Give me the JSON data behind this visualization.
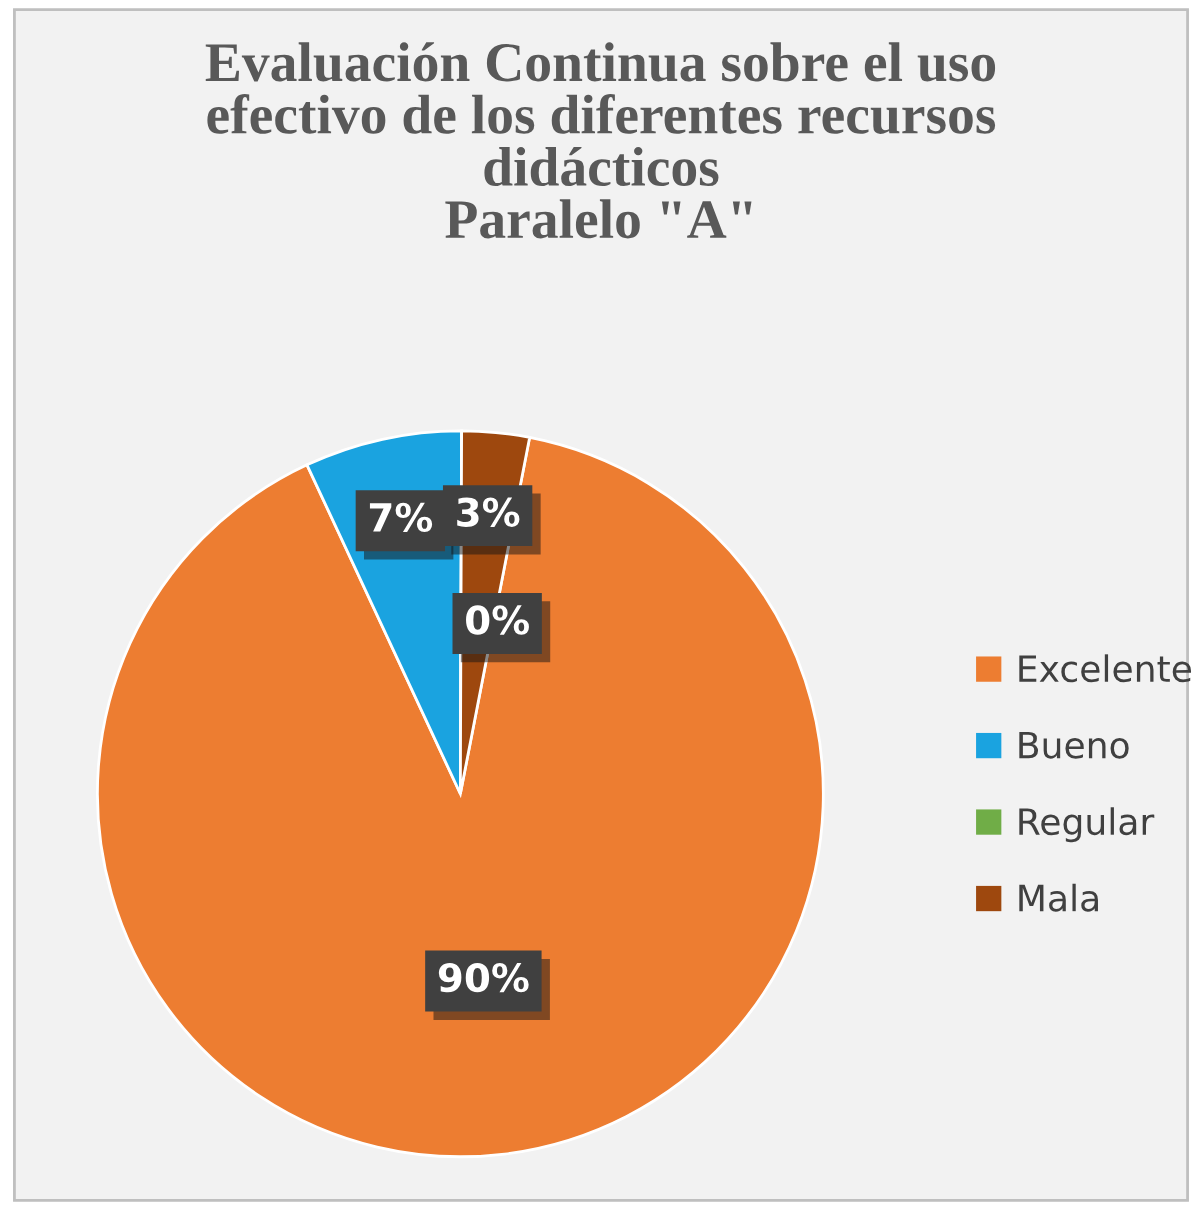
{
  "chart_data": {
    "type": "pie",
    "title": "Evaluación Continua sobre el uso\nefectivo de los diferentes recursos\ndidácticos\nParalelo \"A\"",
    "categories": [
      "Excelente",
      "Bueno",
      "Regular",
      "Mala"
    ],
    "values": [
      90,
      7,
      0,
      3
    ],
    "colors": [
      "#ed7d31",
      "#1aa3e0",
      "#70ad47",
      "#9e480e"
    ],
    "value_labels": [
      "90%",
      "7%",
      "0%",
      "3%"
    ],
    "legend": "right"
  }
}
